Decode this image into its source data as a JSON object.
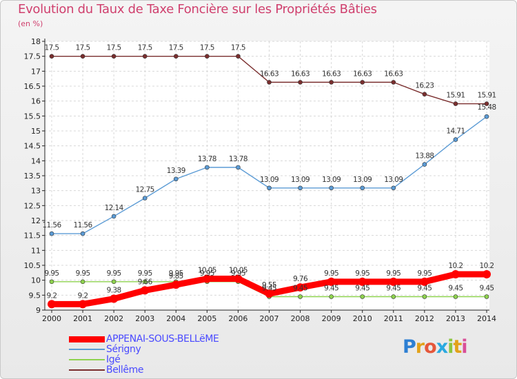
{
  "title": "Evolution du Taux de Taxe Foncière sur les Propriétés Bâties",
  "subtitle": "(en %)",
  "logo_text": "Proxiti",
  "colors": {
    "title": "#d0406e",
    "grid": "#d8d8d8",
    "axis": "#222222"
  },
  "chart_data": {
    "type": "line",
    "x": [
      2000,
      2001,
      2002,
      2003,
      2004,
      2005,
      2006,
      2007,
      2008,
      2009,
      2010,
      2011,
      2012,
      2013,
      2014
    ],
    "ylim": [
      9,
      18
    ],
    "yticks": [
      "9",
      "9.5",
      "10",
      "10.5",
      "11",
      "11.5",
      "12",
      "12.5",
      "13",
      "13.5",
      "14",
      "14.5",
      "15",
      "15.5",
      "16",
      "16.5",
      "17",
      "17.5",
      "18"
    ],
    "grid": true,
    "legend_position": "bottom-left",
    "series": [
      {
        "name": "APPENAI-SOUS-BELLëME",
        "color": "#ff0000",
        "style": "thick",
        "values": [
          9.2,
          9.2,
          9.38,
          9.66,
          9.85,
          10.05,
          10.05,
          9.55,
          9.76,
          9.95,
          9.95,
          9.95,
          9.95,
          10.2,
          10.2
        ],
        "labels": [
          "9.2",
          "9.2",
          "9.38",
          "9.66",
          "9.85",
          "10.05",
          "10.05",
          "9.55",
          "9.76",
          "9.95",
          "9.95",
          "9.95",
          "9.95",
          "10.2",
          "10.2"
        ]
      },
      {
        "name": "Sérigny",
        "color": "#5b9bd5",
        "style": "thin",
        "values": [
          11.56,
          11.56,
          12.14,
          12.75,
          13.39,
          13.78,
          13.78,
          13.09,
          13.09,
          13.09,
          13.09,
          13.09,
          13.88,
          14.71,
          15.48
        ],
        "labels": [
          "11.56",
          "11.56",
          "12.14",
          "12.75",
          "13.39",
          "13.78",
          "13.78",
          "13.09",
          "13.09",
          "13.09",
          "13.09",
          "13.09",
          "13.88",
          "14.71",
          "15.48"
        ]
      },
      {
        "name": "Igé",
        "color": "#8ed24e",
        "style": "thin",
        "values": [
          9.95,
          9.95,
          9.95,
          9.95,
          9.95,
          9.95,
          9.95,
          9.45,
          9.45,
          9.45,
          9.45,
          9.45,
          9.45,
          9.45,
          9.45
        ],
        "labels": [
          "9.95",
          "9.95",
          "9.95",
          "9.95",
          "9.95",
          "9.95",
          "9.95",
          "9.45",
          "9.45",
          "9.45",
          "9.45",
          "9.45",
          "9.45",
          "9.45",
          "9.45"
        ]
      },
      {
        "name": "Bellême",
        "color": "#7a2e2e",
        "style": "thin",
        "values": [
          17.5,
          17.5,
          17.5,
          17.5,
          17.5,
          17.5,
          17.5,
          16.63,
          16.63,
          16.63,
          16.63,
          16.63,
          16.23,
          15.91,
          15.91
        ],
        "labels": [
          "17.5",
          "17.5",
          "17.5",
          "17.5",
          "17.5",
          "17.5",
          "17.5",
          "16.63",
          "16.63",
          "16.63",
          "16.63",
          "16.63",
          "16.23",
          "15.91",
          "15.91"
        ]
      }
    ]
  }
}
